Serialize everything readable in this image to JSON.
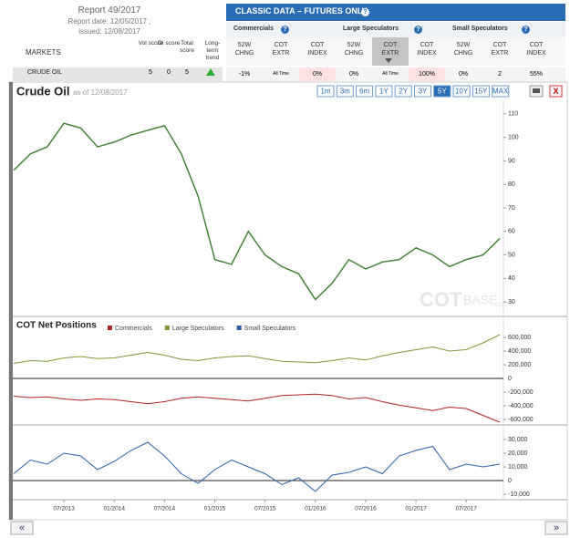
{
  "report": {
    "title": "Report 49/2017",
    "date": "Report date: 12/05/2017 ,",
    "issued": "issued: 12/08/2017"
  },
  "table": {
    "banner": "CLASSIC DATA – FUTURES ONLY",
    "help_icon": "?",
    "markets_header": "MARKETS",
    "score_headers": [
      "Vol score",
      "OI score",
      "Total score",
      "Long-term trend"
    ],
    "groups": [
      "Commercials",
      "Large Speculators",
      "Small Speculators"
    ],
    "columns": [
      "52W CHNG",
      "COT EXTR",
      "COT INDEX"
    ],
    "rows": [
      {
        "market": "CRUDE OIL",
        "scores": [
          5,
          0,
          5
        ],
        "cells": [
          "-1%",
          "All Time",
          "0%",
          "0%",
          "All Time",
          "100%",
          "0%",
          "2",
          "55%"
        ]
      }
    ]
  },
  "chart_panel": {
    "title": "Crude Oil",
    "as_of": "as of 12/08/2017",
    "ranges": [
      "1m",
      "3m",
      "6m",
      "1Y",
      "2Y",
      "3Y",
      "5Y",
      "10Y",
      "15Y",
      "MAX"
    ],
    "active_range_index": 6,
    "close": "X",
    "watermark": [
      "COT",
      "BASE",
      ".com"
    ]
  },
  "nav": {
    "prev": "«",
    "next": "»"
  },
  "chart_data": [
    {
      "type": "line",
      "color": "#3a7d2c",
      "x": [
        "01/2013",
        "03/2013",
        "05/2013",
        "07/2013",
        "09/2013",
        "11/2013",
        "01/2014",
        "03/2014",
        "05/2014",
        "07/2014",
        "09/2014",
        "11/2014",
        "01/2015",
        "03/2015",
        "05/2015",
        "07/2015",
        "09/2015",
        "11/2015",
        "01/2016",
        "03/2016",
        "05/2016",
        "07/2016",
        "09/2016",
        "11/2016",
        "01/2017",
        "03/2017",
        "05/2017",
        "07/2017",
        "09/2017",
        "11/2017"
      ],
      "values": [
        86,
        93,
        96,
        106,
        104,
        96,
        98,
        101,
        103,
        105,
        93,
        75,
        48,
        46,
        60,
        50,
        45,
        42,
        31,
        38,
        48,
        44,
        47,
        48,
        53,
        50,
        45,
        48,
        50,
        57
      ],
      "ylim": [
        25,
        115
      ],
      "yticks": [
        30,
        40,
        50,
        60,
        70,
        80,
        90,
        100,
        110
      ]
    },
    {
      "type": "line",
      "title": "COT Net Positions",
      "x": [
        "01/2013",
        "03/2013",
        "05/2013",
        "07/2013",
        "09/2013",
        "11/2013",
        "01/2014",
        "03/2014",
        "05/2014",
        "07/2014",
        "09/2014",
        "11/2014",
        "01/2015",
        "03/2015",
        "05/2015",
        "07/2015",
        "09/2015",
        "11/2015",
        "01/2016",
        "03/2016",
        "05/2016",
        "07/2016",
        "09/2016",
        "11/2016",
        "01/2017",
        "03/2017",
        "05/2017",
        "07/2017",
        "09/2017",
        "11/2017"
      ],
      "xticks": [
        "07/2013",
        "01/2014",
        "07/2014",
        "01/2015",
        "07/2015",
        "01/2016",
        "07/2016",
        "01/2017",
        "07/2017"
      ],
      "series": [
        {
          "name": "Commercials",
          "color": "#b22222",
          "values": [
            -260000,
            -280000,
            -270000,
            -300000,
            -320000,
            -300000,
            -310000,
            -340000,
            -370000,
            -340000,
            -290000,
            -270000,
            -290000,
            -310000,
            -330000,
            -290000,
            -250000,
            -240000,
            -230000,
            -250000,
            -300000,
            -280000,
            -340000,
            -390000,
            -430000,
            -470000,
            -420000,
            -440000,
            -540000,
            -640000
          ]
        },
        {
          "name": "Large Speculators",
          "color": "#7a9a3a",
          "values": [
            220000,
            260000,
            250000,
            300000,
            320000,
            290000,
            300000,
            340000,
            380000,
            340000,
            280000,
            260000,
            300000,
            320000,
            330000,
            290000,
            250000,
            240000,
            230000,
            260000,
            300000,
            270000,
            330000,
            380000,
            420000,
            460000,
            400000,
            420000,
            520000,
            640000
          ]
        },
        {
          "name": "Small Speculators",
          "color": "#2a5fa8",
          "axis": "y2",
          "values": [
            5000,
            15000,
            12000,
            20000,
            18000,
            8000,
            14000,
            22000,
            28000,
            18000,
            5000,
            -2000,
            8000,
            15000,
            10000,
            5000,
            -3000,
            2000,
            -8000,
            4000,
            6000,
            10000,
            5000,
            18000,
            22000,
            25000,
            8000,
            12000,
            10000,
            12000
          ]
        }
      ],
      "ylim": [
        -680000,
        680000
      ],
      "yticks": [
        {
          "value": -600000,
          "label": "-600,000"
        },
        {
          "value": -400000,
          "label": "-400,000"
        },
        {
          "value": -200000,
          "label": "-200,000"
        },
        0,
        {
          "value": 200000,
          "label": "200,000"
        },
        {
          "value": 400000,
          "label": "400,000"
        },
        {
          "value": 600000,
          "label": "600,000"
        }
      ],
      "y2lim": [
        -12000,
        40000
      ],
      "y2ticks": [
        {
          "value": -10000,
          "label": "-10,000"
        },
        0,
        {
          "value": 10000,
          "label": "10,000"
        },
        {
          "value": 20000,
          "label": "20,000"
        },
        {
          "value": 30000,
          "label": "30,000"
        }
      ]
    }
  ]
}
